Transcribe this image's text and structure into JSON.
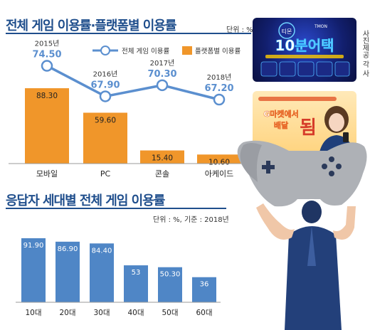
{
  "chart_data": [
    {
      "type": "bar",
      "title": "전체 게임 이용률·플랫폼별 이용률",
      "unit": "단위 : %",
      "categories": [
        "모바일",
        "PC",
        "콘솔",
        "아케이드"
      ],
      "series": [
        {
          "name": "플랫폼별 이용률",
          "values": [
            88.3,
            59.6,
            15.4,
            10.6
          ],
          "labels": [
            "88.30",
            "59.60",
            "15.40",
            "10.60"
          ],
          "color": "#f0962a"
        }
      ],
      "line_series": {
        "name": "전체 게임 이용률",
        "x": [
          "2015년",
          "2016년",
          "2017년",
          "2018년"
        ],
        "values": [
          74.5,
          67.9,
          70.3,
          67.2
        ],
        "labels": [
          "74.50",
          "67.90",
          "70.30",
          "67.20"
        ],
        "color": "#5b8fcf"
      },
      "legend_position": "top-right",
      "grid": false
    },
    {
      "type": "bar",
      "title": "응답자 세대별 전체 게임 이용률",
      "unit": "단위 : %, 기준 : 2018년",
      "categories": [
        "10대",
        "20대",
        "30대",
        "40대",
        "50대",
        "60대"
      ],
      "values": [
        91.9,
        86.9,
        84.4,
        53,
        50.3,
        36
      ],
      "labels": [
        "91.90",
        "86.90",
        "84.40",
        "53",
        "50.30",
        "36"
      ],
      "color": "#4f86c6",
      "grid": false
    }
  ],
  "ads": {
    "ad1": {
      "badge": "티몬",
      "logo": "TMON",
      "headline": "10분어택"
    },
    "ad2": {
      "headline_line1": "G마켓에서",
      "headline_line2": "배달",
      "big_char": "됨"
    },
    "credit": "사진제공 각 사"
  },
  "colors": {
    "title": "#1f4e8c",
    "line": "#5b8fcf",
    "orange": "#f0962a",
    "blue_bar": "#4f86c6"
  }
}
